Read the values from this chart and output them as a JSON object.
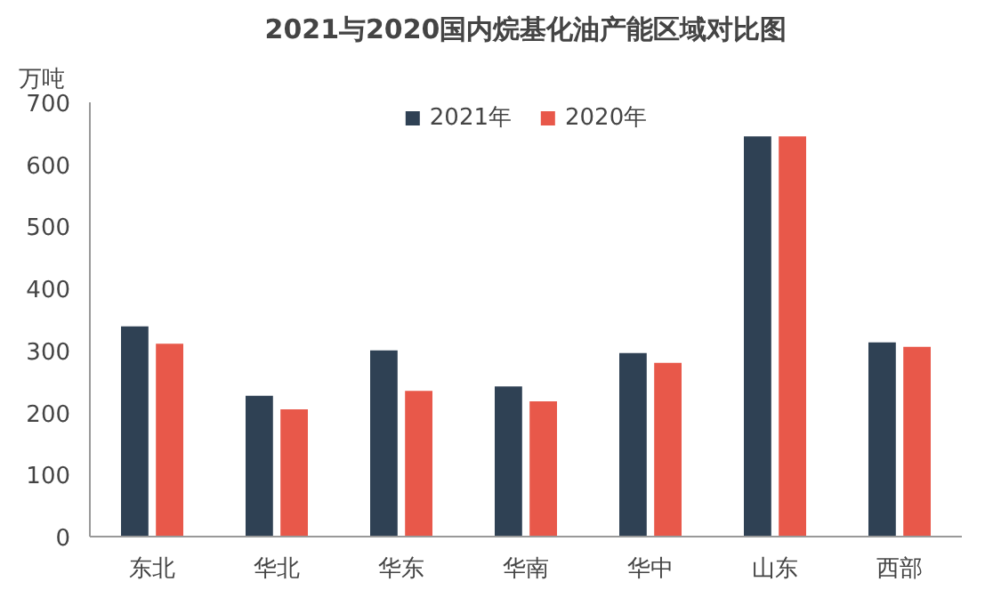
{
  "chart_data": {
    "type": "bar",
    "title": "2021与2020国内烷基化油产能区域对比图",
    "ylabel": "万吨",
    "categories": [
      "东北",
      "华北",
      "华东",
      "华南",
      "华中",
      "山东",
      "西部"
    ],
    "series": [
      {
        "name": "2021年",
        "color": "#2f4154",
        "values": [
          339,
          227,
          300,
          242,
          296,
          645,
          313
        ]
      },
      {
        "name": "2020年",
        "color": "#e8584a",
        "values": [
          311,
          205,
          235,
          218,
          280,
          645,
          306
        ]
      }
    ],
    "ylim": [
      0,
      700
    ],
    "yticks": [
      0,
      100,
      200,
      300,
      400,
      500,
      600,
      700
    ],
    "grid": false,
    "legend": "top"
  }
}
